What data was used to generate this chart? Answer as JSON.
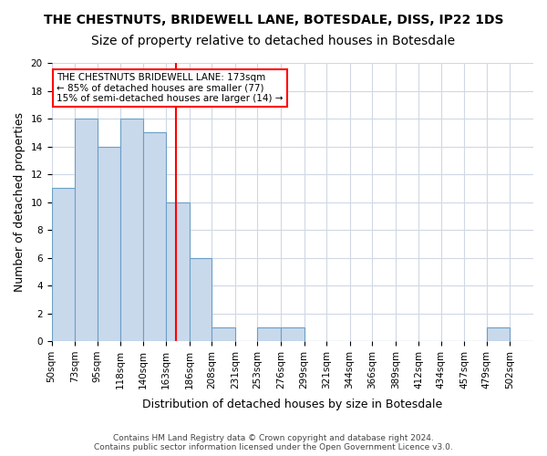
{
  "title": "THE CHESTNUTS, BRIDEWELL LANE, BOTESDALE, DISS, IP22 1DS",
  "subtitle": "Size of property relative to detached houses in Botesdale",
  "xlabel": "Distribution of detached houses by size in Botesdale",
  "ylabel": "Number of detached properties",
  "bin_edges": [
    50,
    73,
    95,
    118,
    140,
    163,
    186,
    208,
    231,
    253,
    276,
    299,
    321,
    344,
    366,
    389,
    412,
    434,
    457,
    479,
    502,
    525
  ],
  "bar_heights": [
    11,
    16,
    14,
    16,
    15,
    10,
    6,
    1,
    0,
    1,
    1,
    0,
    0,
    0,
    0,
    0,
    0,
    0,
    0,
    1,
    0
  ],
  "bar_facecolor": "#c9d9ec",
  "bar_edgecolor": "#6aa0c7",
  "vline_x": 173,
  "vline_color": "red",
  "annotation_text": "THE CHESTNUTS BRIDEWELL LANE: 173sqm\n← 85% of detached houses are smaller (77)\n15% of semi-detached houses are larger (14) →",
  "annotation_box_edgecolor": "red",
  "annotation_box_facecolor": "white",
  "ylim": [
    0,
    20
  ],
  "yticks": [
    0,
    2,
    4,
    6,
    8,
    10,
    12,
    14,
    16,
    18,
    20
  ],
  "tick_labels": [
    "50sqm",
    "73sqm",
    "95sqm",
    "118sqm",
    "140sqm",
    "163sqm",
    "186sqm",
    "208sqm",
    "231sqm",
    "253sqm",
    "276sqm",
    "299sqm",
    "321sqm",
    "344sqm",
    "366sqm",
    "389sqm",
    "412sqm",
    "434sqm",
    "457sqm",
    "479sqm",
    "502sqm"
  ],
  "grid_color": "#d0d8e4",
  "footnote": "Contains HM Land Registry data © Crown copyright and database right 2024.\nContains public sector information licensed under the Open Government Licence v3.0.",
  "title_fontsize": 10,
  "subtitle_fontsize": 10,
  "tick_fontsize": 7.5,
  "ylabel_fontsize": 9,
  "xlabel_fontsize": 9
}
